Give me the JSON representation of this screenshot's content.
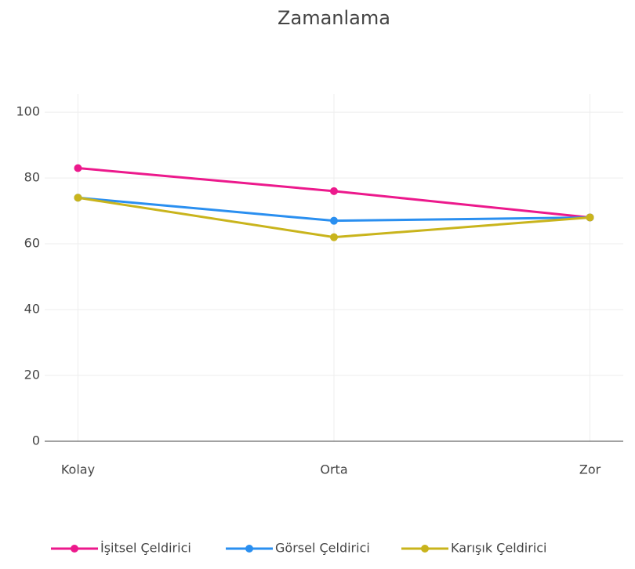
{
  "chart_data": {
    "type": "line",
    "title": "Zamanlama",
    "categories": [
      "Kolay",
      "Orta",
      "Zor"
    ],
    "series": [
      {
        "name": "İşitsel Çeldirici",
        "color": "#ec198c",
        "values": [
          83,
          76,
          68
        ]
      },
      {
        "name": "Görsel Çeldirici",
        "color": "#2a8ff0",
        "values": [
          74,
          67,
          68
        ]
      },
      {
        "name": "Karışık Çeldirici",
        "color": "#c9b41c",
        "values": [
          74,
          62,
          68
        ]
      }
    ],
    "ylim": [
      0,
      105.5
    ],
    "yticks": [
      0,
      20,
      40,
      60,
      80,
      100
    ],
    "grid": true,
    "legend": "bottom"
  }
}
